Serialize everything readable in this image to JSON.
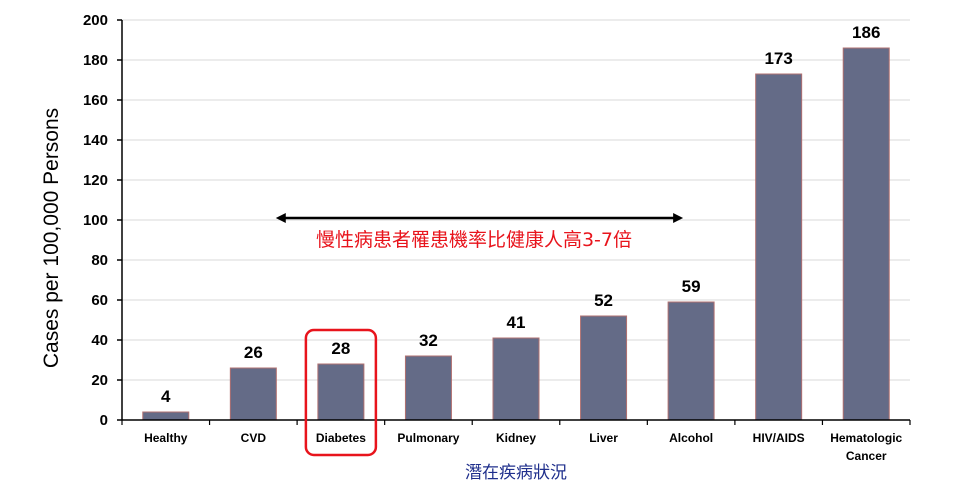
{
  "chart_data": {
    "type": "bar",
    "title": "",
    "categories": [
      "Healthy",
      "CVD",
      "Diabetes",
      "Pulmonary",
      "Kidney",
      "Liver",
      "Alcohol",
      "HIV/AIDS",
      "Hematologic Cancer"
    ],
    "category_lines": [
      [
        "Healthy"
      ],
      [
        "CVD"
      ],
      [
        "Diabetes"
      ],
      [
        "Pulmonary"
      ],
      [
        "Kidney"
      ],
      [
        "Liver"
      ],
      [
        "Alcohol"
      ],
      [
        "HIV/AIDS"
      ],
      [
        "Hematologic",
        "Cancer"
      ]
    ],
    "values": [
      4,
      26,
      28,
      32,
      41,
      52,
      59,
      173,
      186
    ],
    "value_labels": [
      "4",
      "26",
      "28",
      "32",
      "41",
      "52",
      "59",
      "173",
      "186"
    ],
    "xlabel": "潛在疾病狀況",
    "ylabel": "Cases per 100,000 Persons",
    "ylim": [
      0,
      200
    ],
    "yticks": [
      0,
      20,
      40,
      60,
      80,
      100,
      120,
      140,
      160,
      180,
      200
    ],
    "grid": true,
    "highlighted_category": "Diabetes",
    "annotation": {
      "text": "慢性病患者罹患機率比健康人高3-7倍",
      "arrow_from_category": "Healthy",
      "arrow_to_category": "Alcohol",
      "arrow_y_value": 100
    },
    "colors": {
      "bar": "#646b87",
      "bar_edge": "#b07070",
      "highlight": "#e8141c",
      "annotation": "#e8141c",
      "xlabel": "#1f2f8c",
      "grid": "#d9d9d9"
    }
  }
}
